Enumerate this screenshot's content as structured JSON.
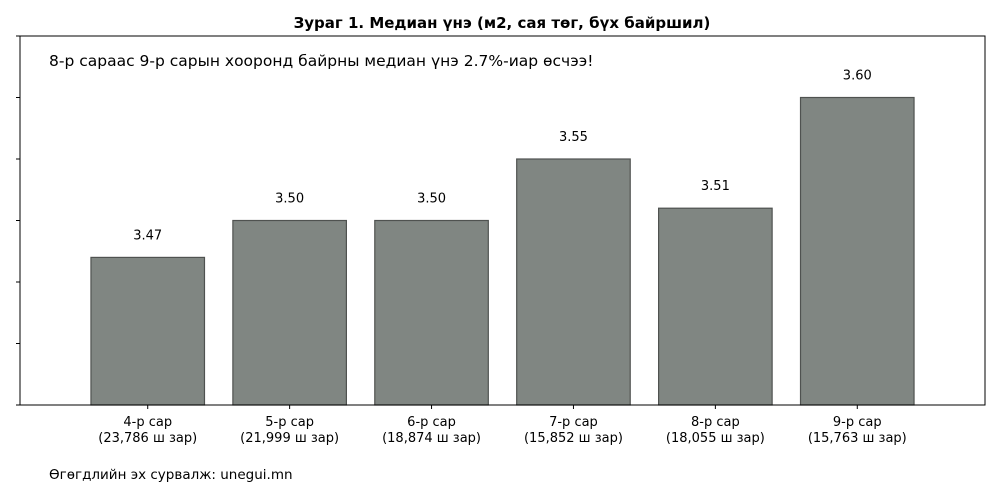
{
  "chart_data": {
    "type": "bar",
    "title": "Зураг 1. Медиан үнэ (м2, сая төг, бүх байршил)",
    "annotation": "8-р сараас 9-р сарын хооронд байрны медиан үнэ 2.7%-иар өсчээ!",
    "source": "Өгөгдлийн эх сурвалж: unegui.mn",
    "categories": [
      {
        "month": "4-р сар",
        "listings": "(23,786 ш зар)"
      },
      {
        "month": "5-р сар",
        "listings": "(21,999 ш зар)"
      },
      {
        "month": "6-р сар",
        "listings": "(18,874 ш зар)"
      },
      {
        "month": "7-р сар",
        "listings": "(15,852 ш зар)"
      },
      {
        "month": "8-р сар",
        "listings": "(18,055 ш зар)"
      },
      {
        "month": "9-р сар",
        "listings": "(15,763 ш зар)"
      }
    ],
    "values": [
      3.47,
      3.5,
      3.5,
      3.55,
      3.51,
      3.6
    ],
    "value_labels": [
      "3.47",
      "3.50",
      "3.50",
      "3.55",
      "3.51",
      "3.60"
    ],
    "ylim": [
      3.35,
      3.6
    ],
    "bar_color": "#808682",
    "bar_edge_color": "#4f5250",
    "grid": false,
    "ytick_labels_visible": false
  }
}
